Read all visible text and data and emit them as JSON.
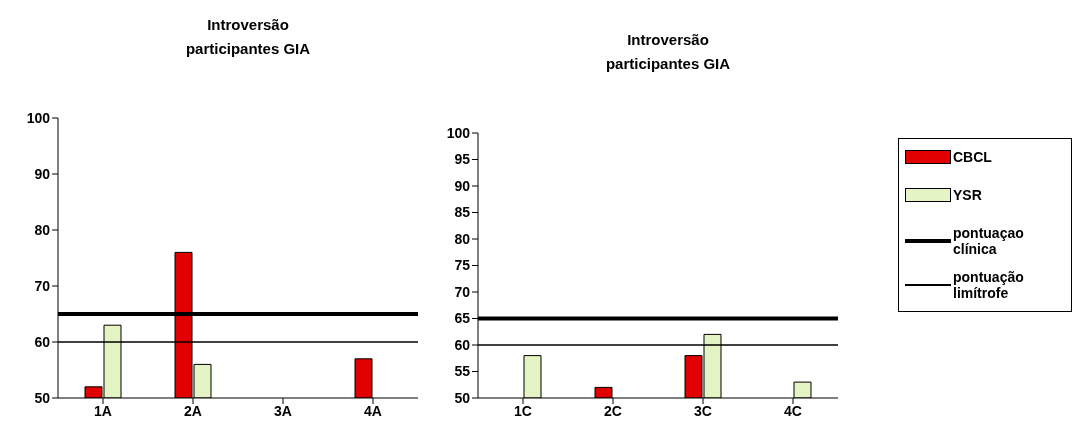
{
  "chart_data": [
    {
      "type": "bar",
      "title": "Introversão\nparticipantes GIA",
      "categories": [
        "1A",
        "2A",
        "3A",
        "4A"
      ],
      "series": [
        {
          "color": "#e00000",
          "values": [
            52,
            76,
            null,
            57
          ]
        },
        {
          "color": "#e4f4c4",
          "values": [
            63,
            56,
            null,
            null
          ]
        }
      ],
      "ylim": [
        50,
        100
      ],
      "yticks": [
        50,
        60,
        70,
        80,
        90,
        100
      ],
      "grid": false,
      "ref_lines": [
        {
          "axis": "y",
          "value": 65,
          "color": "#000000"
        },
        {
          "axis": "y",
          "value": 60,
          "color": "#000000"
        }
      ]
    },
    {
      "type": "bar",
      "title": "Introversão\nparticipantes GIA",
      "categories": [
        "1C",
        "2C",
        "3C",
        "4C"
      ],
      "series": [
        {
          "name": "CBCL",
          "color": "#e00000",
          "values": [
            null,
            52,
            58,
            null
          ]
        },
        {
          "name": "YSR",
          "color": "#e4f4c4",
          "values": [
            58,
            null,
            62,
            53
          ]
        }
      ],
      "ylim": [
        50,
        100
      ],
      "yticks": [
        50,
        55,
        60,
        65,
        70,
        75,
        80,
        85,
        90,
        95,
        100
      ],
      "grid": false,
      "legend": "right",
      "ref_lines": [
        {
          "axis": "y",
          "value": 65,
          "label": "pontuaçao clínica",
          "color": "#000000"
        },
        {
          "axis": "y",
          "value": 60,
          "label": "pontuação limítrofe",
          "color": "#000000"
        }
      ]
    }
  ]
}
